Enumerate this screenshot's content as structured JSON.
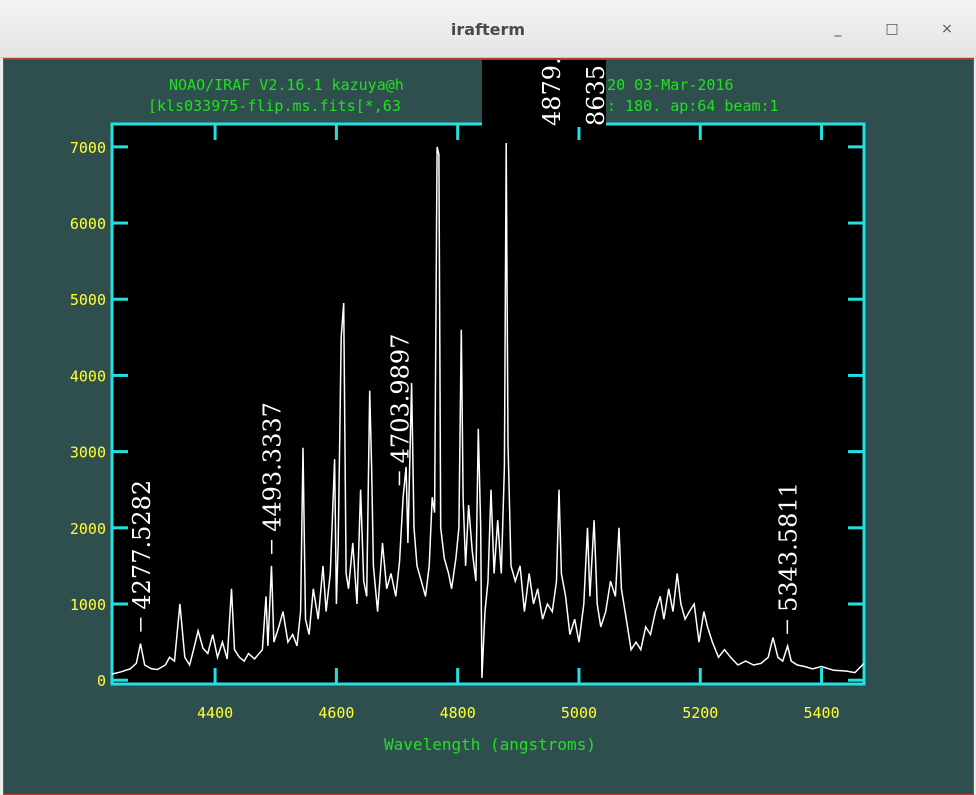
{
  "window": {
    "title": "irafterm",
    "minimize_label": "_",
    "maximize_label": "□",
    "close_label": "×"
  },
  "plot": {
    "header_line1": "NOAO/IRAF V2.16.1 kazuya@h",
    "header_line1_right": "32:20 03-Mar-2016",
    "header_line2": "[kls033975-flip.ms.fits[*,63",
    "header_line2_right": ": 180. ap:64 beam:1",
    "popup_line1": "4879.",
    "popup_line2": "8635"
  },
  "chart_data": {
    "type": "line",
    "title": "",
    "xlabel": "Wavelength (angstroms)",
    "ylabel": "",
    "xlim": [
      4230,
      5470
    ],
    "ylim": [
      -50,
      7300
    ],
    "xticks": [
      4400,
      4600,
      4800,
      5000,
      5200,
      5400
    ],
    "yticks": [
      0,
      1000,
      2000,
      3000,
      4000,
      5000,
      6000,
      7000
    ],
    "series": [
      {
        "values": [
          [
            4230,
            80
          ],
          [
            4245,
            110
          ],
          [
            4260,
            150
          ],
          [
            4270,
            220
          ],
          [
            4277,
            480
          ],
          [
            4284,
            200
          ],
          [
            4295,
            150
          ],
          [
            4305,
            140
          ],
          [
            4318,
            200
          ],
          [
            4325,
            300
          ],
          [
            4333,
            250
          ],
          [
            4342,
            1000
          ],
          [
            4350,
            300
          ],
          [
            4358,
            200
          ],
          [
            4366,
            450
          ],
          [
            4372,
            650
          ],
          [
            4380,
            420
          ],
          [
            4388,
            350
          ],
          [
            4396,
            600
          ],
          [
            4404,
            300
          ],
          [
            4412,
            500
          ],
          [
            4420,
            280
          ],
          [
            4427,
            1200
          ],
          [
            4432,
            400
          ],
          [
            4440,
            300
          ],
          [
            4448,
            250
          ],
          [
            4455,
            350
          ],
          [
            4465,
            280
          ],
          [
            4478,
            400
          ],
          [
            4484,
            1100
          ],
          [
            4487,
            450
          ],
          [
            4493,
            1500
          ],
          [
            4497,
            500
          ],
          [
            4505,
            700
          ],
          [
            4512,
            900
          ],
          [
            4520,
            500
          ],
          [
            4528,
            600
          ],
          [
            4535,
            450
          ],
          [
            4541,
            900
          ],
          [
            4545,
            3050
          ],
          [
            4549,
            800
          ],
          [
            4555,
            600
          ],
          [
            4562,
            1200
          ],
          [
            4570,
            800
          ],
          [
            4578,
            1500
          ],
          [
            4583,
            900
          ],
          [
            4590,
            1400
          ],
          [
            4597,
            2900
          ],
          [
            4600,
            1000
          ],
          [
            4603,
            1800
          ],
          [
            4608,
            4500
          ],
          [
            4612,
            4950
          ],
          [
            4616,
            1400
          ],
          [
            4620,
            1200
          ],
          [
            4627,
            1800
          ],
          [
            4634,
            1000
          ],
          [
            4640,
            2500
          ],
          [
            4645,
            1300
          ],
          [
            4650,
            1100
          ],
          [
            4655,
            3800
          ],
          [
            4658,
            2800
          ],
          [
            4661,
            1500
          ],
          [
            4668,
            900
          ],
          [
            4676,
            1800
          ],
          [
            4683,
            1200
          ],
          [
            4690,
            1400
          ],
          [
            4698,
            1100
          ],
          [
            4704,
            1550
          ],
          [
            4710,
            2400
          ],
          [
            4715,
            2800
          ],
          [
            4718,
            1800
          ],
          [
            4724,
            3900
          ],
          [
            4728,
            2000
          ],
          [
            4733,
            1500
          ],
          [
            4740,
            1300
          ],
          [
            4747,
            1100
          ],
          [
            4753,
            1500
          ],
          [
            4758,
            2400
          ],
          [
            4762,
            2200
          ],
          [
            4766,
            7000
          ],
          [
            4769,
            6900
          ],
          [
            4772,
            2000
          ],
          [
            4778,
            1600
          ],
          [
            4785,
            1400
          ],
          [
            4790,
            1200
          ],
          [
            4797,
            1600
          ],
          [
            4802,
            2000
          ],
          [
            4806,
            4600
          ],
          [
            4809,
            2400
          ],
          [
            4813,
            1500
          ],
          [
            4818,
            2300
          ],
          [
            4824,
            1700
          ],
          [
            4830,
            1300
          ],
          [
            4834,
            3300
          ],
          [
            4838,
            2000
          ],
          [
            4840,
            30
          ],
          [
            4845,
            900
          ],
          [
            4850,
            1300
          ],
          [
            4855,
            2500
          ],
          [
            4860,
            1400
          ],
          [
            4866,
            2100
          ],
          [
            4872,
            1400
          ],
          [
            4877,
            2800
          ],
          [
            4880,
            7050
          ],
          [
            4883,
            3100
          ],
          [
            4888,
            1500
          ],
          [
            4895,
            1300
          ],
          [
            4903,
            1500
          ],
          [
            4910,
            900
          ],
          [
            4918,
            1400
          ],
          [
            4925,
            1000
          ],
          [
            4932,
            1200
          ],
          [
            4940,
            800
          ],
          [
            4948,
            1000
          ],
          [
            4956,
            900
          ],
          [
            4963,
            1300
          ],
          [
            4967,
            2500
          ],
          [
            4971,
            1400
          ],
          [
            4978,
            1100
          ],
          [
            4985,
            600
          ],
          [
            4993,
            800
          ],
          [
            5000,
            500
          ],
          [
            5008,
            1000
          ],
          [
            5014,
            2000
          ],
          [
            5018,
            1100
          ],
          [
            5025,
            2100
          ],
          [
            5030,
            1000
          ],
          [
            5036,
            700
          ],
          [
            5044,
            900
          ],
          [
            5052,
            1300
          ],
          [
            5060,
            1100
          ],
          [
            5066,
            2000
          ],
          [
            5070,
            1200
          ],
          [
            5078,
            800
          ],
          [
            5086,
            400
          ],
          [
            5094,
            500
          ],
          [
            5102,
            400
          ],
          [
            5110,
            700
          ],
          [
            5118,
            600
          ],
          [
            5126,
            900
          ],
          [
            5134,
            1100
          ],
          [
            5140,
            800
          ],
          [
            5148,
            1200
          ],
          [
            5155,
            900
          ],
          [
            5162,
            1400
          ],
          [
            5168,
            1000
          ],
          [
            5175,
            800
          ],
          [
            5182,
            900
          ],
          [
            5190,
            1000
          ],
          [
            5198,
            500
          ],
          [
            5206,
            900
          ],
          [
            5212,
            700
          ],
          [
            5220,
            500
          ],
          [
            5230,
            300
          ],
          [
            5240,
            400
          ],
          [
            5250,
            300
          ],
          [
            5262,
            200
          ],
          [
            5275,
            250
          ],
          [
            5288,
            200
          ],
          [
            5300,
            220
          ],
          [
            5312,
            300
          ],
          [
            5320,
            560
          ],
          [
            5328,
            300
          ],
          [
            5336,
            250
          ],
          [
            5344,
            450
          ],
          [
            5350,
            250
          ],
          [
            5360,
            200
          ],
          [
            5372,
            180
          ],
          [
            5385,
            150
          ],
          [
            5400,
            180
          ],
          [
            5420,
            130
          ],
          [
            5440,
            120
          ],
          [
            5455,
            100
          ],
          [
            5470,
            220
          ]
        ]
      }
    ],
    "annotations": [
      {
        "text": "4277.5282",
        "x": 4277.5282,
        "y": 480
      },
      {
        "text": "4493.3337",
        "x": 4493.3337,
        "y": 1500
      },
      {
        "text": "4703.9897",
        "x": 4703.9897,
        "y": 2400
      },
      {
        "text": "5343.5811",
        "x": 5343.5811,
        "y": 450
      }
    ]
  }
}
